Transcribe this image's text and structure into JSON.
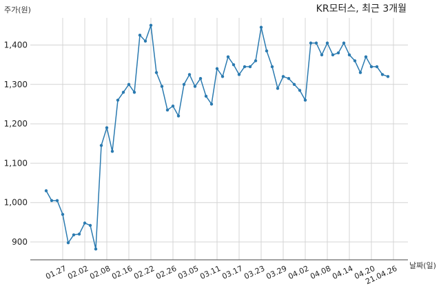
{
  "chart_data": {
    "type": "line",
    "title": "KR모터스, 최근 3개월",
    "ylabel": "주가(원)",
    "xlabel": "날짜(일)",
    "ylim": [
      850,
      1480
    ],
    "y_ticks": [
      900,
      1000,
      1100,
      1200,
      1300,
      1400
    ],
    "y_tick_labels": [
      "900",
      "1,000",
      "1,100",
      "1,200",
      "1,300",
      "1,400"
    ],
    "x_tick_labels": [
      "01.27",
      "02.02",
      "02.08",
      "02.16",
      "02.22",
      "02.26",
      "03.05",
      "03.11",
      "03.17",
      "03.23",
      "03.29",
      "04.02",
      "04.08",
      "04.14",
      "04.20",
      "21.04.26"
    ],
    "x_tick_index": [
      3,
      7,
      11,
      15,
      19,
      23,
      27,
      31,
      35,
      39,
      43,
      47,
      51,
      55,
      59,
      63
    ],
    "grid": true,
    "color": "#2a7ab0",
    "series": [
      {
        "values": [
          1030,
          1005,
          1005,
          970,
          898,
          918,
          920,
          948,
          942,
          882,
          1145,
          1190,
          1130,
          1260,
          1280,
          1300,
          1280,
          1425,
          1410,
          1450,
          1330,
          1295,
          1235,
          1245,
          1220,
          1300,
          1325,
          1295,
          1315,
          1270,
          1250,
          1340,
          1320,
          1370,
          1350,
          1325,
          1345,
          1345,
          1360,
          1445,
          1385,
          1345,
          1290,
          1320,
          1315,
          1300,
          1285,
          1260,
          1405,
          1405,
          1375,
          1405,
          1375,
          1380,
          1405,
          1375,
          1360,
          1330,
          1370,
          1345,
          1345,
          1325,
          1320
        ]
      }
    ]
  }
}
